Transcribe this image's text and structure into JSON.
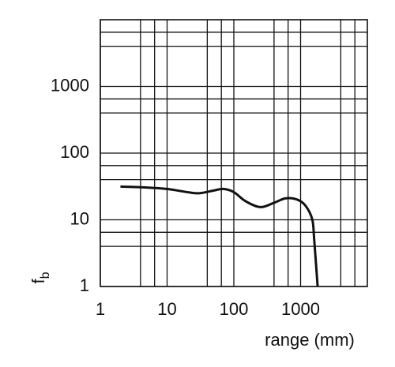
{
  "chart_data": {
    "type": "line",
    "xlabel": "range (mm)",
    "ylabel": "f",
    "ylabel_subscript": "b",
    "xscale": "log",
    "yscale": "log",
    "grid": true,
    "xlim": [
      1,
      10000
    ],
    "ylim": [
      1,
      10000
    ],
    "xticks": [
      1,
      10,
      100,
      1000
    ],
    "yticks": [
      1,
      10,
      100,
      1000
    ],
    "x_minor_grid": [
      4,
      6.5,
      40,
      65,
      400,
      650,
      4000,
      6500
    ],
    "y_minor_grid": [
      4,
      6.5,
      40,
      65,
      400,
      650,
      4000,
      6500
    ],
    "x": [
      2,
      5,
      10,
      20,
      30,
      50,
      70,
      100,
      150,
      250,
      400,
      600,
      900,
      1200,
      1500,
      1600,
      1800
    ],
    "series": [
      {
        "color": "#111111",
        "values": [
          31.5,
          30.5,
          29,
          26,
          25,
          27.5,
          29,
          26,
          19,
          15.5,
          18,
          21,
          20,
          16,
          10,
          5,
          1
        ]
      }
    ]
  }
}
